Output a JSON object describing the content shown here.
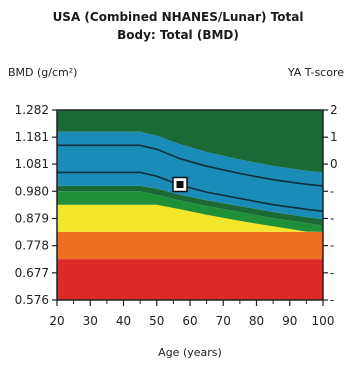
{
  "chart_data": {
    "type": "area",
    "title_lines": [
      "USA (Combined NHANES/Lunar) Total",
      "Body: Total (BMD)"
    ],
    "ylabel": "BMD (g/cm²)",
    "ylabel_right": "YA T-score",
    "xlabel": "Age (years)",
    "xlim": [
      20,
      100
    ],
    "ylim": [
      0.576,
      1.282
    ],
    "x_ticks": [
      20,
      30,
      40,
      50,
      60,
      70,
      80,
      90,
      100
    ],
    "y_ticks": [
      "1.282",
      "1.181",
      "1.081",
      "0.980",
      "0.879",
      "0.778",
      "0.677",
      "0.576"
    ],
    "right_ticks": [
      {
        "label": "2",
        "y": 1.282
      },
      {
        "label": "1",
        "y": 1.181
      },
      {
        "label": "0",
        "y": 1.081
      },
      {
        "label": "-",
        "y": 0.98
      },
      {
        "label": "-",
        "y": 0.879
      },
      {
        "label": "-",
        "y": 0.778
      },
      {
        "label": "-",
        "y": 0.677
      },
      {
        "label": "-",
        "y": 0.576
      }
    ],
    "bands": [
      {
        "name": "red",
        "color": "#dd2a26",
        "lower": [
          [
            20,
            0.576
          ],
          [
            100,
            0.576
          ]
        ],
        "upper": [
          [
            20,
            0.728
          ],
          [
            100,
            0.728
          ]
        ]
      },
      {
        "name": "orange",
        "color": "#ee6e22",
        "lower": [
          [
            20,
            0.728
          ],
          [
            100,
            0.728
          ]
        ],
        "upper": [
          [
            20,
            0.829
          ],
          [
            100,
            0.829
          ]
        ]
      },
      {
        "name": "yellow",
        "color": "#f3e52a",
        "lower": [
          [
            20,
            0.829
          ],
          [
            100,
            0.829
          ]
        ],
        "upper": [
          [
            20,
            0.93
          ],
          [
            35,
            0.93
          ],
          [
            45,
            0.93
          ],
          [
            50,
            0.93
          ],
          [
            57,
            0.913
          ],
          [
            65,
            0.893
          ],
          [
            75,
            0.87
          ],
          [
            85,
            0.85
          ],
          [
            95,
            0.83
          ],
          [
            100,
            0.829
          ]
        ]
      },
      {
        "name": "green",
        "color": "#1f8f3a",
        "lower": [
          [
            20,
            0.93
          ],
          [
            35,
            0.93
          ],
          [
            45,
            0.93
          ],
          [
            50,
            0.93
          ],
          [
            57,
            0.913
          ],
          [
            65,
            0.893
          ],
          [
            75,
            0.87
          ],
          [
            85,
            0.85
          ],
          [
            95,
            0.83
          ],
          [
            100,
            0.829
          ]
        ],
        "upper": [
          [
            20,
            0.98
          ],
          [
            35,
            0.98
          ],
          [
            45,
            0.98
          ],
          [
            50,
            0.966
          ],
          [
            57,
            0.946
          ],
          [
            65,
            0.925
          ],
          [
            75,
            0.903
          ],
          [
            85,
            0.88
          ],
          [
            95,
            0.862
          ],
          [
            100,
            0.852
          ]
        ]
      },
      {
        "name": "dark-green-band",
        "color": "#1b6a36",
        "lower": [
          [
            20,
            0.98
          ],
          [
            35,
            0.98
          ],
          [
            45,
            0.98
          ],
          [
            50,
            0.966
          ],
          [
            57,
            0.946
          ],
          [
            65,
            0.925
          ],
          [
            75,
            0.903
          ],
          [
            85,
            0.88
          ],
          [
            95,
            0.862
          ],
          [
            100,
            0.852
          ]
        ],
        "upper": [
          [
            20,
            1.0
          ],
          [
            35,
            1.0
          ],
          [
            45,
            1.0
          ],
          [
            50,
            0.99
          ],
          [
            57,
            0.967
          ],
          [
            65,
            0.947
          ],
          [
            75,
            0.925
          ],
          [
            85,
            0.903
          ],
          [
            95,
            0.884
          ],
          [
            100,
            0.876
          ]
        ]
      },
      {
        "name": "blue",
        "color": "#1b8cb8",
        "lower": [
          [
            20,
            1.0
          ],
          [
            35,
            1.0
          ],
          [
            45,
            1.0
          ],
          [
            50,
            0.99
          ],
          [
            57,
            0.967
          ],
          [
            65,
            0.947
          ],
          [
            75,
            0.925
          ],
          [
            85,
            0.903
          ],
          [
            95,
            0.884
          ],
          [
            100,
            0.876
          ]
        ],
        "upper": [
          [
            20,
            1.201
          ],
          [
            35,
            1.201
          ],
          [
            45,
            1.201
          ],
          [
            50,
            1.186
          ],
          [
            57,
            1.155
          ],
          [
            65,
            1.126
          ],
          [
            75,
            1.098
          ],
          [
            85,
            1.074
          ],
          [
            95,
            1.056
          ],
          [
            100,
            1.05
          ]
        ]
      },
      {
        "name": "top-green",
        "color": "#1b6a36",
        "lower": [
          [
            20,
            1.201
          ],
          [
            35,
            1.201
          ],
          [
            45,
            1.201
          ],
          [
            50,
            1.186
          ],
          [
            57,
            1.155
          ],
          [
            65,
            1.126
          ],
          [
            75,
            1.098
          ],
          [
            85,
            1.074
          ],
          [
            95,
            1.056
          ],
          [
            100,
            1.05
          ]
        ],
        "upper": [
          [
            20,
            1.282
          ],
          [
            100,
            1.282
          ]
        ]
      }
    ],
    "reference_lines": [
      {
        "name": "reference-line-upper",
        "color": "#0d2f3a",
        "points": [
          [
            20,
            1.151
          ],
          [
            35,
            1.151
          ],
          [
            45,
            1.151
          ],
          [
            50,
            1.136
          ],
          [
            57,
            1.101
          ],
          [
            65,
            1.073
          ],
          [
            75,
            1.046
          ],
          [
            85,
            1.023
          ],
          [
            95,
            1.006
          ],
          [
            100,
            1.0
          ]
        ]
      },
      {
        "name": "reference-line-lower",
        "color": "#0d2f3a",
        "points": [
          [
            20,
            1.05
          ],
          [
            35,
            1.05
          ],
          [
            45,
            1.05
          ],
          [
            50,
            1.036
          ],
          [
            57,
            1.003
          ],
          [
            65,
            0.977
          ],
          [
            75,
            0.953
          ],
          [
            85,
            0.93
          ],
          [
            95,
            0.913
          ],
          [
            100,
            0.906
          ]
        ]
      }
    ],
    "patient_point": {
      "x": 57,
      "y": 1.005
    },
    "grid": false
  }
}
